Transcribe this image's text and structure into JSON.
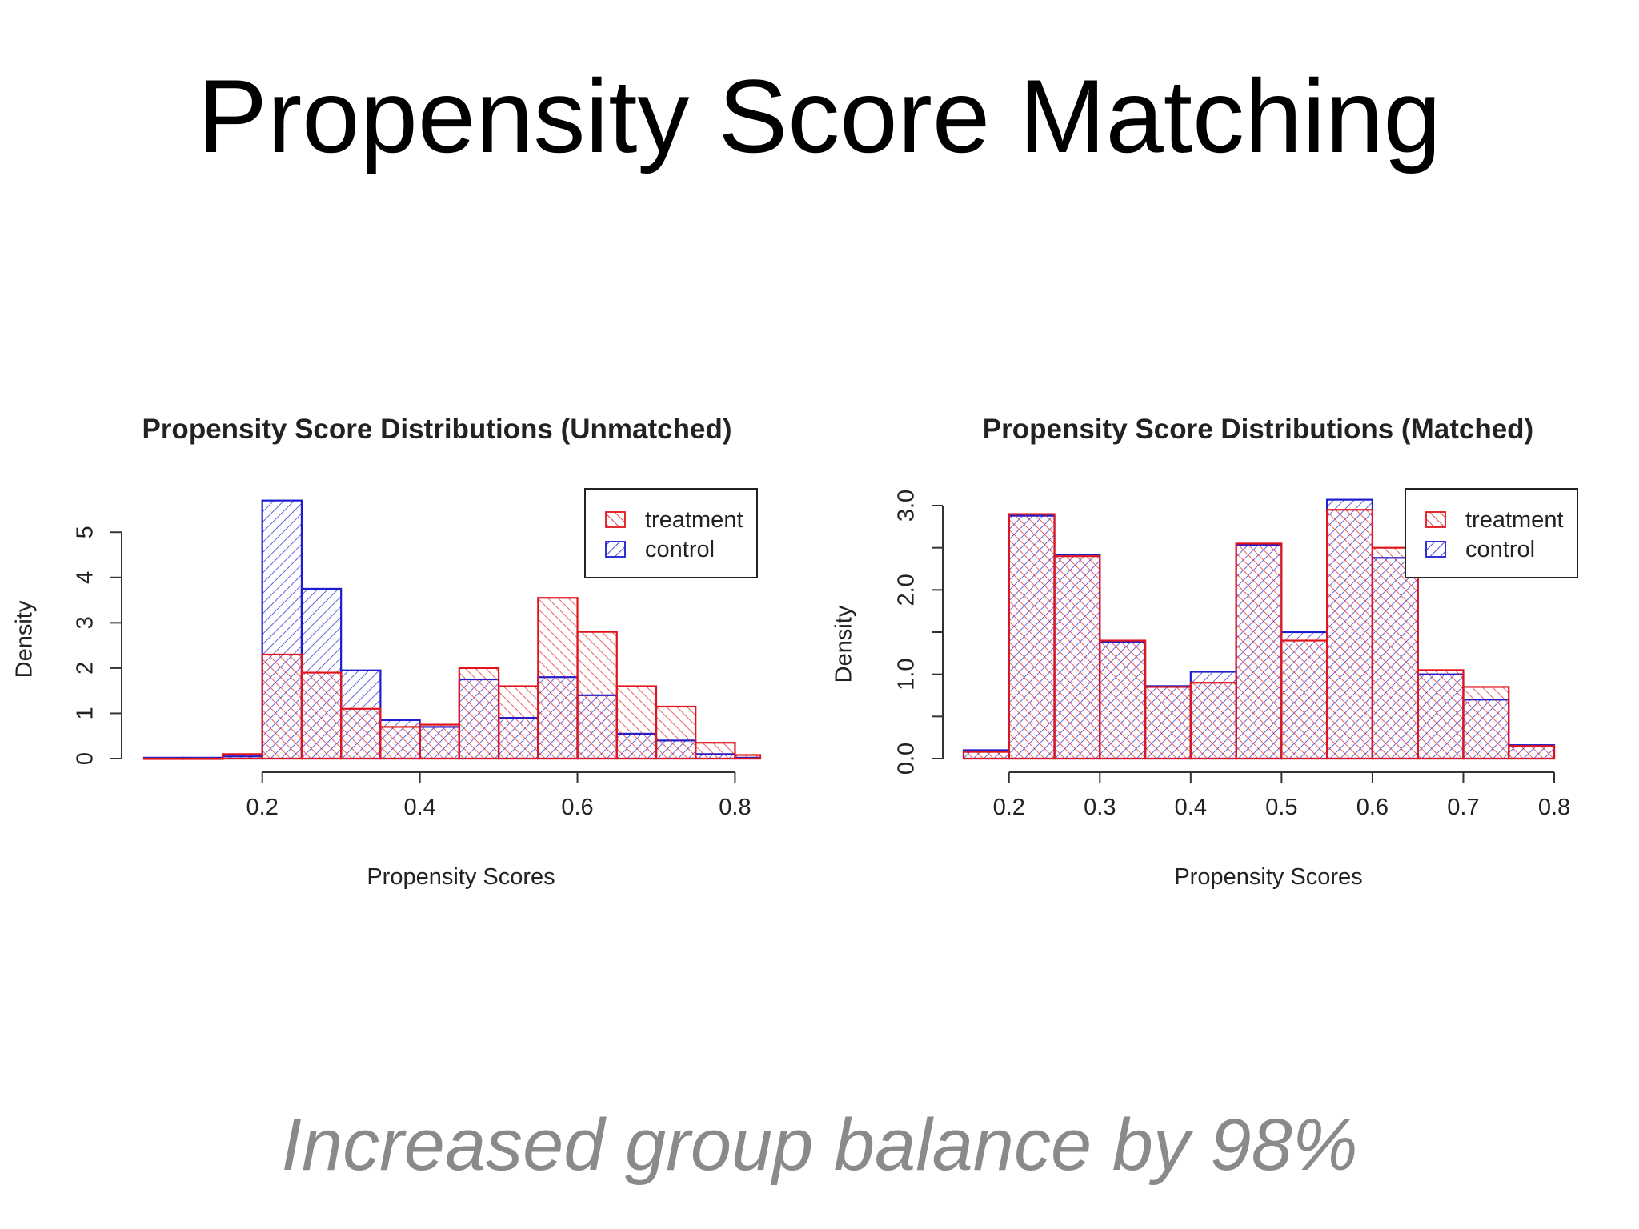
{
  "slide": {
    "title": "Propensity Score Matching",
    "subtitle": "Increased group balance by 98%"
  },
  "colors": {
    "treatment": "#e0151b",
    "control": "#1c1cd0"
  },
  "chart_data": [
    {
      "type": "bar",
      "title": "Propensity Score Distributions (Unmatched)",
      "xlabel": "Propensity Scores",
      "ylabel": "Density",
      "xlim": [
        0.05,
        0.83
      ],
      "ylim": [
        0,
        5.8
      ],
      "xticks": [
        "0.2",
        "0.4",
        "0.6",
        "0.8"
      ],
      "yticks": [
        "0",
        "1",
        "2",
        "3",
        "4",
        "5"
      ],
      "bin_edges": [
        0.05,
        0.1,
        0.15,
        0.2,
        0.25,
        0.3,
        0.35,
        0.4,
        0.45,
        0.5,
        0.55,
        0.6,
        0.65,
        0.7,
        0.75,
        0.8,
        0.85
      ],
      "series": [
        {
          "name": "treatment",
          "values": [
            0,
            0,
            0.1,
            2.3,
            1.9,
            1.1,
            0.7,
            0.75,
            2.0,
            1.6,
            3.55,
            2.8,
            1.6,
            1.15,
            0.35,
            0.08
          ]
        },
        {
          "name": "control",
          "values": [
            0.02,
            0.02,
            0.05,
            5.7,
            3.75,
            1.95,
            0.85,
            0.7,
            1.75,
            0.9,
            1.8,
            1.4,
            0.55,
            0.4,
            0.1,
            0.02
          ]
        }
      ],
      "legend": "top-right",
      "grid": false
    },
    {
      "type": "bar",
      "title": "Propensity Score Distributions (Matched)",
      "xlabel": "Propensity Scores",
      "ylabel": "Density",
      "xlim": [
        0.15,
        0.8
      ],
      "ylim": [
        0,
        3.0
      ],
      "xticks": [
        "0.2",
        "0.3",
        "0.4",
        "0.5",
        "0.6",
        "0.7",
        "0.8"
      ],
      "yticks": [
        "0.0",
        "1.0",
        "2.0",
        "3.0"
      ],
      "bin_edges": [
        0.15,
        0.2,
        0.25,
        0.3,
        0.35,
        0.4,
        0.45,
        0.5,
        0.55,
        0.6,
        0.65,
        0.7,
        0.75,
        0.8
      ],
      "series": [
        {
          "name": "treatment",
          "values": [
            0.08,
            2.9,
            2.4,
            1.4,
            0.85,
            0.9,
            2.55,
            1.4,
            2.95,
            2.5,
            1.05,
            0.85,
            0.15
          ]
        },
        {
          "name": "control",
          "values": [
            0.1,
            2.88,
            2.42,
            1.38,
            0.86,
            1.03,
            2.53,
            1.5,
            3.07,
            2.38,
            1.0,
            0.7,
            0.16
          ]
        }
      ],
      "legend": "top-right",
      "grid": false
    }
  ]
}
